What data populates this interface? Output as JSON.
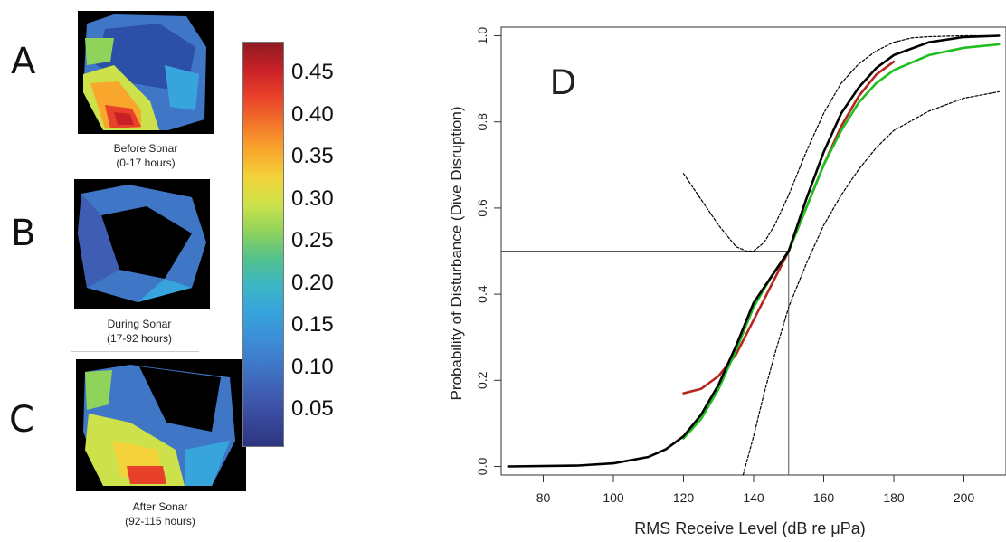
{
  "panels": {
    "a": {
      "letter": "A",
      "caption_line1": "Before Sonar",
      "caption_line2": "(0-17 hours)"
    },
    "b": {
      "letter": "B",
      "caption_line1": "During Sonar",
      "caption_line2": "(17-92 hours)"
    },
    "c": {
      "letter": "C",
      "caption_line1": "After Sonar",
      "caption_line2": "(92-115 hours)"
    }
  },
  "colorbar": {
    "ticks": [
      "0.45",
      "0.40",
      "0.35",
      "0.30",
      "0.25",
      "0.20",
      "0.15",
      "0.10",
      "0.05"
    ],
    "colors": [
      "#8e1b22",
      "#c82027",
      "#e8412a",
      "#f2742a",
      "#f8a62c",
      "#f3d23a",
      "#cde24a",
      "#90d35a",
      "#55c28a",
      "#3cb6c4",
      "#37a4dc",
      "#3c8fd6",
      "#3f77c6",
      "#3f5eb3",
      "#39489c",
      "#2c357f"
    ]
  },
  "chart_data": {
    "type": "line",
    "panel_label": "D",
    "xlabel": "RMS Receive Level (dB re μPa)",
    "ylabel": "Probability of Disturbance (Dive Disruption)",
    "xlim": [
      68,
      212
    ],
    "ylim": [
      -0.02,
      1.02
    ],
    "xticks": [
      "80",
      "100",
      "120",
      "140",
      "160",
      "180",
      "200"
    ],
    "xtick_values": [
      80,
      100,
      120,
      140,
      160,
      180,
      200
    ],
    "yticks": [
      "0.0",
      "0.2",
      "0.4",
      "0.6",
      "0.8",
      "1.0"
    ],
    "ytick_values": [
      0.0,
      0.2,
      0.4,
      0.6,
      0.8,
      1.0
    ],
    "reference_lines": {
      "x": 150,
      "y": 0.5
    },
    "series": [
      {
        "color": "#000000",
        "style": "solid",
        "x": [
          70,
          90,
          100,
          110,
          115,
          120,
          125,
          130,
          135,
          140,
          145,
          150,
          155,
          160,
          165,
          170,
          175,
          180,
          190,
          200,
          210
        ],
        "y": [
          0.0,
          0.002,
          0.007,
          0.022,
          0.04,
          0.07,
          0.12,
          0.19,
          0.28,
          0.38,
          0.44,
          0.5,
          0.62,
          0.73,
          0.82,
          0.88,
          0.925,
          0.955,
          0.985,
          0.997,
          1.0
        ]
      },
      {
        "color": "#1fbf1f",
        "style": "solid",
        "x": [
          120,
          125,
          130,
          135,
          140,
          145,
          150,
          155,
          160,
          165,
          170,
          175,
          180,
          190,
          200,
          210
        ],
        "y": [
          0.065,
          0.11,
          0.18,
          0.27,
          0.37,
          0.44,
          0.5,
          0.6,
          0.7,
          0.78,
          0.845,
          0.89,
          0.92,
          0.955,
          0.972,
          0.98
        ]
      },
      {
        "color": "#b5261e",
        "style": "solid",
        "x": [
          120,
          125,
          130,
          135,
          140,
          145,
          150,
          155,
          160,
          165,
          170,
          175,
          180
        ],
        "y": [
          0.17,
          0.18,
          0.21,
          0.26,
          0.34,
          0.42,
          0.5,
          0.6,
          0.7,
          0.79,
          0.86,
          0.91,
          0.94
        ]
      },
      {
        "color": "#000000",
        "style": "dotted",
        "x": [
          120,
          125,
          130,
          135,
          138,
          140,
          143,
          146,
          150,
          155,
          160,
          165,
          170,
          175,
          180,
          185,
          190,
          200,
          210
        ],
        "y": [
          0.68,
          0.62,
          0.56,
          0.51,
          0.5,
          0.5,
          0.52,
          0.56,
          0.63,
          0.73,
          0.82,
          0.89,
          0.935,
          0.965,
          0.985,
          0.995,
          0.998,
          1.0,
          1.0
        ]
      },
      {
        "color": "#000000",
        "style": "dotted",
        "x": [
          137,
          140,
          143,
          146,
          150,
          155,
          160,
          165,
          170,
          175,
          180,
          190,
          200,
          210
        ],
        "y": [
          -0.02,
          0.07,
          0.17,
          0.26,
          0.37,
          0.47,
          0.56,
          0.63,
          0.69,
          0.74,
          0.78,
          0.825,
          0.855,
          0.87
        ]
      }
    ]
  }
}
